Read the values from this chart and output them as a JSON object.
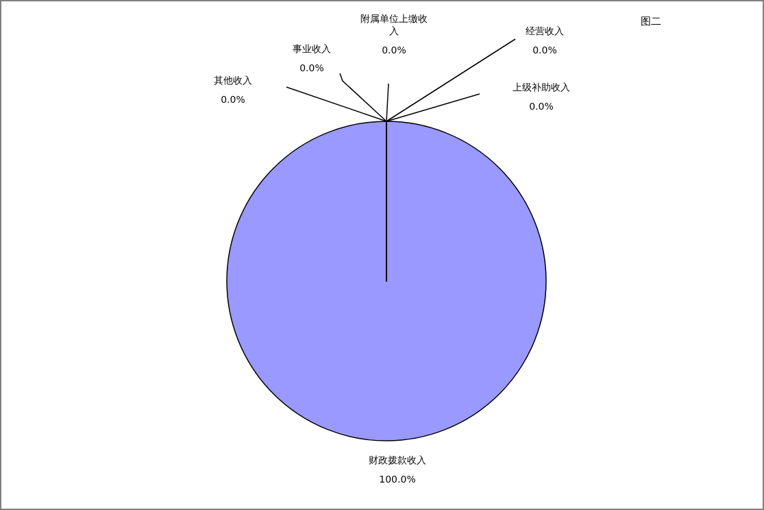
{
  "chart_data": {
    "type": "pie",
    "title": "图二",
    "categories": [
      "财政拨款收入",
      "上级补助收入",
      "经营收入",
      "附属单位上缴收入",
      "事业收入",
      "其他收入"
    ],
    "values": [
      100,
      0,
      0,
      0,
      0,
      0
    ],
    "value_labels": [
      "100.0%",
      "0.0%",
      "0.0%",
      "0.0%",
      "0.0%",
      "0.0%"
    ],
    "colors": [
      "#9999ff",
      "#993366",
      "#ffffcc",
      "#ccffff",
      "#660066",
      "#ff8080"
    ],
    "legend": false
  }
}
